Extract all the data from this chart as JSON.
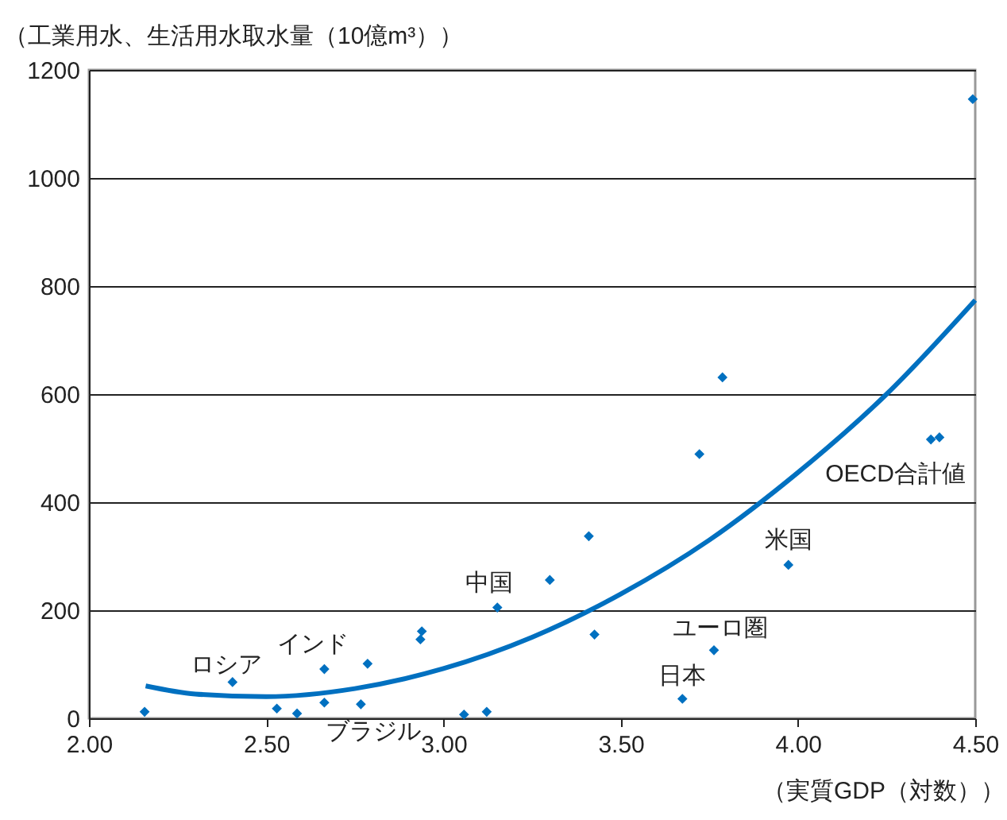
{
  "chart_data": {
    "type": "scatter",
    "ylabel": "（工業用水、生活用水取水量（10億m³））",
    "xlabel": "（実質GDP（対数））",
    "series": [
      {
        "color": "#0070c0",
        "marker": "diamond",
        "x": [
          2.157,
          2.405,
          2.53,
          2.587,
          2.664,
          2.664,
          2.767,
          2.786,
          2.939,
          2.935,
          3.058,
          3.122,
          3.152,
          3.3,
          3.41,
          3.426,
          3.674,
          3.722,
          3.763,
          3.787,
          3.973,
          4.375,
          4.399,
          4.493
        ],
        "values": [
          12,
          67,
          18,
          9,
          91,
          29,
          26,
          101,
          161,
          146,
          7,
          12,
          205,
          256,
          337,
          155,
          36,
          489,
          126,
          631,
          284,
          516,
          520,
          1146
        ]
      },
      {
        "type": "line",
        "color": "#0070c0",
        "x": [
          2.16,
          2.3,
          2.5,
          2.75,
          3.0,
          3.25,
          3.5,
          3.75,
          4.0,
          4.25,
          4.5
        ],
        "values": [
          60,
          45,
          40,
          55,
          92,
          150,
          230,
          330,
          455,
          600,
          774
        ]
      }
    ],
    "annotations": [
      {
        "text": "ロシア",
        "x": 2.405,
        "y": 67
      },
      {
        "text": "インド",
        "x": 2.664,
        "y": 91
      },
      {
        "text": "ブラジル",
        "x": 2.767,
        "y": 26
      },
      {
        "text": "中国",
        "x": 3.152,
        "y": 205
      },
      {
        "text": "日本",
        "x": 3.674,
        "y": 36
      },
      {
        "text": "ユーロ圏",
        "x": 3.763,
        "y": 126
      },
      {
        "text": "米国",
        "x": 3.973,
        "y": 284
      },
      {
        "text": "OECD合計値",
        "x": 4.387,
        "y": 518
      }
    ],
    "xlim": [
      2,
      4.5
    ],
    "xticks": [
      {
        "value": 2,
        "label": "2.00"
      },
      {
        "value": 2.5,
        "label": "2.50"
      },
      {
        "value": 3,
        "label": "3.00"
      },
      {
        "value": 3.5,
        "label": "3.50"
      },
      {
        "value": 4,
        "label": "4.00"
      },
      {
        "value": 4.5,
        "label": "4.50"
      }
    ],
    "ylim": [
      0,
      1200
    ],
    "yticks": [
      0,
      200,
      400,
      600,
      800,
      1000,
      1200
    ],
    "grid": "y",
    "line_style": "solid"
  }
}
